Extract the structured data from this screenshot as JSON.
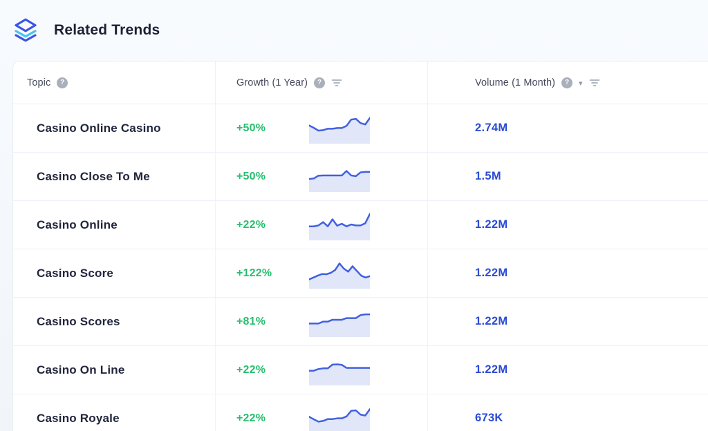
{
  "header": {
    "title": "Related Trends",
    "logo_icon": "layers-icon"
  },
  "table": {
    "columns": [
      {
        "label": "Topic",
        "icons": [
          "help-icon"
        ]
      },
      {
        "label": "Growth (1 Year)",
        "icons": [
          "help-icon",
          "filter-icon"
        ]
      },
      {
        "label": "Volume (1 Month)",
        "icons": [
          "help-icon",
          "caret-down-icon",
          "filter-icon"
        ]
      }
    ],
    "rows": [
      {
        "topic": "Casino Online Casino",
        "growth": "+50%",
        "volume": "2.74M",
        "spark": [
          0.6,
          0.5,
          0.38,
          0.4,
          0.46,
          0.46,
          0.49,
          0.49,
          0.58,
          0.85,
          0.88,
          0.7,
          0.64,
          0.92
        ]
      },
      {
        "topic": "Casino Close To Me",
        "growth": "+50%",
        "volume": "1.5M",
        "spark": [
          0.38,
          0.4,
          0.52,
          0.53,
          0.53,
          0.53,
          0.53,
          0.53,
          0.72,
          0.53,
          0.5,
          0.66,
          0.68,
          0.68
        ]
      },
      {
        "topic": "Casino Online",
        "growth": "+22%",
        "volume": "1.22M",
        "spark": [
          0.42,
          0.42,
          0.46,
          0.6,
          0.42,
          0.72,
          0.45,
          0.53,
          0.42,
          0.5,
          0.46,
          0.46,
          0.55,
          0.95
        ]
      },
      {
        "topic": "Casino Score",
        "growth": "+122%",
        "volume": "1.22M",
        "spark": [
          0.22,
          0.3,
          0.38,
          0.45,
          0.44,
          0.5,
          0.62,
          0.9,
          0.68,
          0.55,
          0.78,
          0.58,
          0.38,
          0.3,
          0.36
        ]
      },
      {
        "topic": "Casino Scores",
        "growth": "+81%",
        "volume": "1.22M",
        "spark": [
          0.4,
          0.4,
          0.4,
          0.48,
          0.48,
          0.56,
          0.56,
          0.56,
          0.63,
          0.63,
          0.63,
          0.76,
          0.79,
          0.79
        ]
      },
      {
        "topic": "Casino On Line",
        "growth": "+22%",
        "volume": "1.22M",
        "spark": [
          0.45,
          0.45,
          0.52,
          0.55,
          0.55,
          0.71,
          0.72,
          0.7,
          0.57,
          0.57,
          0.57,
          0.57,
          0.57,
          0.57
        ]
      },
      {
        "topic": "Casino Royale",
        "growth": "+22%",
        "volume": "673K",
        "spark": [
          0.55,
          0.44,
          0.34,
          0.37,
          0.45,
          0.45,
          0.48,
          0.48,
          0.56,
          0.8,
          0.82,
          0.64,
          0.6,
          0.87
        ]
      }
    ]
  },
  "colors": {
    "growth_green": "#27be6e",
    "volume_blue": "#2b4bd3",
    "spark_line": "#4160df",
    "spark_fill": "#e1e6f9",
    "logo_blue": "#3b55e6",
    "logo_cyan": "#45c6ee"
  },
  "help_glyph": "?"
}
